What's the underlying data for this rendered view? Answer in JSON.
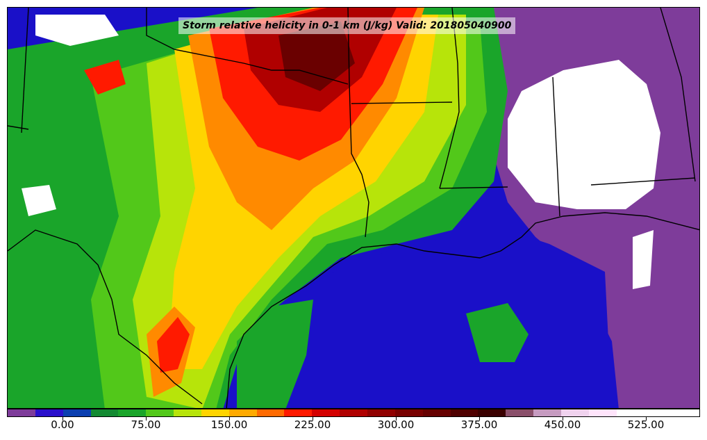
{
  "title": "Storm relative helicity in 0-1 km (J/kg) Valid: 201805040900",
  "colorbar": {
    "colors": [
      "#7e3c9a",
      "#2a10cc",
      "#0b3fb0",
      "#138a32",
      "#1aa52a",
      "#52c81a",
      "#b7e40a",
      "#ffd400",
      "#ffaa00",
      "#ff6a00",
      "#ff1a00",
      "#d40000",
      "#b00000",
      "#900000",
      "#780000",
      "#660000",
      "#4f0000",
      "#3a0000",
      "#8a4f6a",
      "#c69bc0",
      "#f0d2ee",
      "#ffe4fb",
      "#ffffff",
      "#ffffff",
      "#ffffff"
    ],
    "tick_labels": [
      "0.00",
      "75.00",
      "150.00",
      "225.00",
      "300.00",
      "375.00",
      "450.00",
      "525.00"
    ]
  },
  "map_colors": {
    "gulf": "#1a10c8",
    "purple": "#7e3c9a",
    "green": "#1aa52a",
    "light_green": "#52c81a",
    "yellow_green": "#b7e40a",
    "yellow": "#ffd400",
    "orange": "#ff8a00",
    "red": "#ff1a00",
    "dark_red": "#b00000",
    "maroon": "#6a0000",
    "white": "#ffffff"
  }
}
